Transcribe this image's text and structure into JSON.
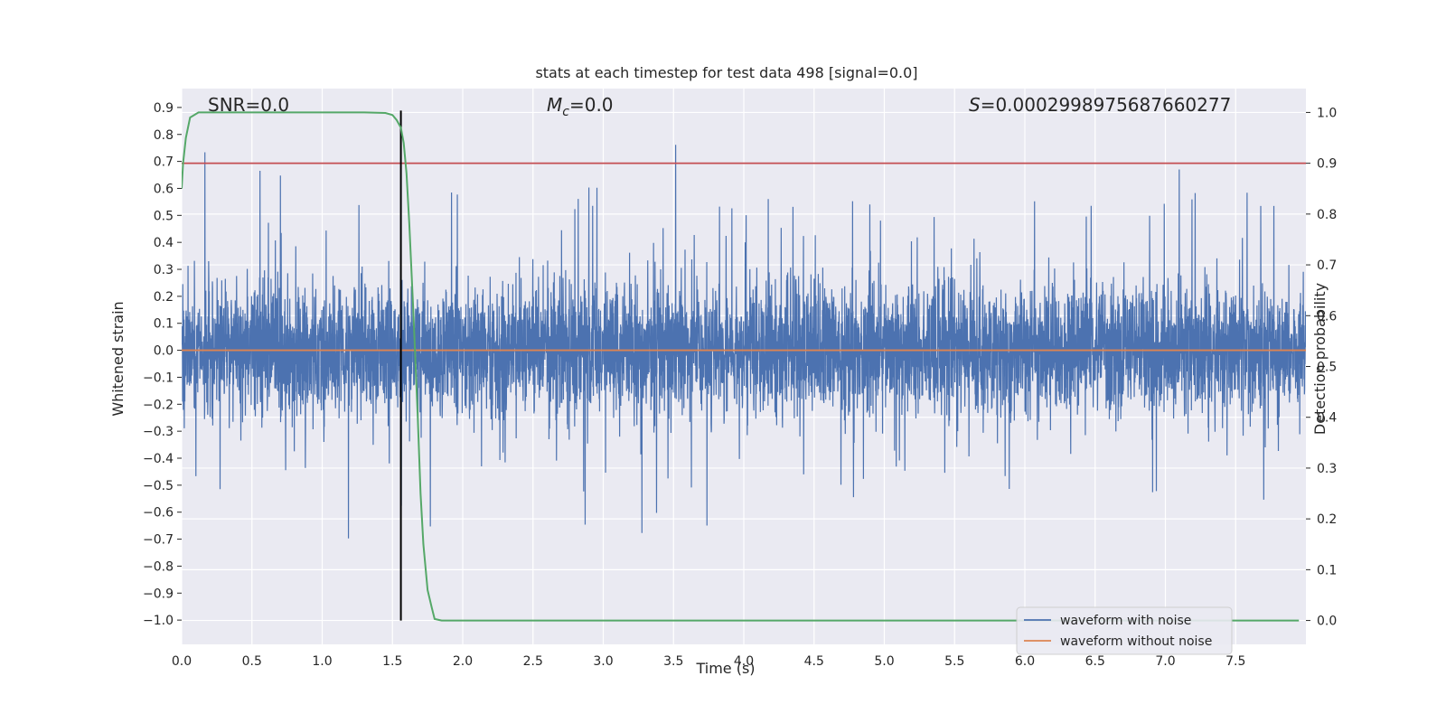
{
  "chart_data": {
    "type": "line",
    "title": "stats at each timestep for test data 498 [signal=0.0]",
    "xlabel": "Time (s)",
    "ylabel_left": "Whitened strain",
    "ylabel_right": "Detection probability",
    "xlim": [
      0.0,
      8.0
    ],
    "ylim_left": [
      -1.09,
      0.97
    ],
    "ylim_right": [
      -0.047,
      1.047
    ],
    "x_ticks": [
      "0.0",
      "0.5",
      "1.0",
      "1.5",
      "2.0",
      "2.5",
      "3.0",
      "3.5",
      "4.0",
      "4.5",
      "5.0",
      "5.5",
      "6.0",
      "6.5",
      "7.0",
      "7.5"
    ],
    "y_left_ticks": [
      "0.9",
      "0.8",
      "0.7",
      "0.6",
      "0.5",
      "0.4",
      "0.3",
      "0.2",
      "0.1",
      "0.0",
      "−0.1",
      "−0.2",
      "−0.3",
      "−0.4",
      "−0.5",
      "−0.6",
      "−0.7",
      "−0.8",
      "−0.9",
      "−1.0"
    ],
    "y_right_ticks": [
      "1.0",
      "0.9",
      "0.8",
      "0.7",
      "0.6",
      "0.5",
      "0.4",
      "0.3",
      "0.2",
      "0.1",
      "0.0"
    ],
    "annotations": {
      "snr": "SNR=0.0",
      "mc": "=0.0",
      "mc_symbol": "M",
      "mc_sub": "c",
      "s": "=0.0002998975687660277",
      "s_symbol": "S"
    },
    "threshold_right": 0.9,
    "marker_time": 1.56,
    "series": [
      {
        "name": "waveform with noise",
        "axis": "left",
        "color": "#4c72b0",
        "note": "dense whitened noise, envelope approx ±0.25 with peaks to about 0.85 and troughs to about -1.0"
      },
      {
        "name": "waveform without noise",
        "axis": "left",
        "color": "#dd8452",
        "x": [
          0.0,
          8.0
        ],
        "y": [
          0.0,
          0.0
        ]
      },
      {
        "axis": "right",
        "color": "#55a868",
        "x": [
          0.0,
          0.01,
          0.03,
          0.06,
          0.12,
          0.3,
          0.6,
          1.0,
          1.3,
          1.45,
          1.5,
          1.53,
          1.56,
          1.58,
          1.6,
          1.62,
          1.65,
          1.68,
          1.7,
          1.72,
          1.75,
          1.78,
          1.8,
          1.85,
          2.0,
          3.0,
          5.0,
          7.0,
          7.95
        ],
        "y": [
          0.85,
          0.9,
          0.95,
          0.99,
          1.0,
          1.0,
          1.0,
          1.0,
          1.0,
          0.999,
          0.995,
          0.985,
          0.97,
          0.94,
          0.88,
          0.78,
          0.6,
          0.4,
          0.25,
          0.15,
          0.06,
          0.025,
          0.003,
          0.0,
          0.0,
          0.0,
          0.0,
          0.0,
          0.0
        ]
      }
    ],
    "legend": {
      "placement": "bottom-right",
      "entries": [
        "waveform with noise",
        "waveform without noise"
      ]
    },
    "grid": true
  }
}
